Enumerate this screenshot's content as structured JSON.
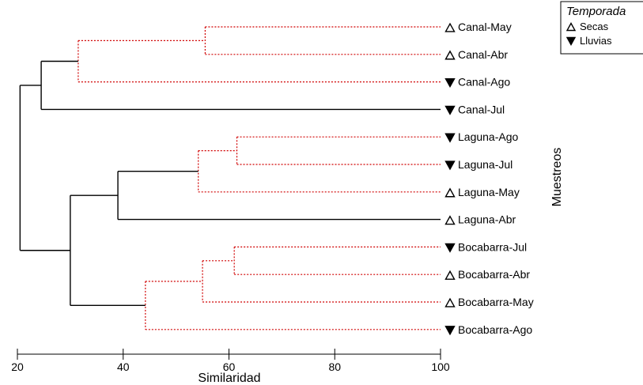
{
  "chart_data": {
    "type": "dendrogram",
    "xlabel": "Similaridad",
    "ylabel": "Muestreos",
    "xlim": [
      20,
      100
    ],
    "xticks": [
      20,
      40,
      60,
      80,
      100
    ],
    "colors": {
      "significant": "#d00000",
      "non_significant": "#000000"
    },
    "legend": {
      "title": "Temporada",
      "placement": "top-right",
      "items": [
        {
          "label": "Secas",
          "symbol": "triangle-up-open"
        },
        {
          "label": "Lluvias",
          "symbol": "triangle-down-filled"
        }
      ]
    },
    "leaves": [
      {
        "label": "Canal-May",
        "season": "Secas"
      },
      {
        "label": "Canal-Abr",
        "season": "Secas"
      },
      {
        "label": "Canal-Ago",
        "season": "Lluvias"
      },
      {
        "label": "Canal-Jul",
        "season": "Lluvias"
      },
      {
        "label": "Laguna-Ago",
        "season": "Lluvias"
      },
      {
        "label": "Laguna-Jul",
        "season": "Lluvias"
      },
      {
        "label": "Laguna-May",
        "season": "Secas"
      },
      {
        "label": "Laguna-Abr",
        "season": "Secas"
      },
      {
        "label": "Bocabarra-Jul",
        "season": "Lluvias"
      },
      {
        "label": "Bocabarra-Abr",
        "season": "Secas"
      },
      {
        "label": "Bocabarra-May",
        "season": "Secas"
      },
      {
        "label": "Bocabarra-Ago",
        "season": "Lluvias"
      }
    ],
    "merges": [
      {
        "id": "m1",
        "children": [
          "Canal-May",
          "Canal-Abr"
        ],
        "similarity": 55.5,
        "significant": false
      },
      {
        "id": "m2",
        "children": [
          "m1",
          "Canal-Ago"
        ],
        "similarity": 31.5,
        "significant": false
      },
      {
        "id": "m3",
        "children": [
          "m2",
          "Canal-Jul"
        ],
        "similarity": 24.5,
        "significant": true
      },
      {
        "id": "m4",
        "children": [
          "Laguna-Ago",
          "Laguna-Jul"
        ],
        "similarity": 61.5,
        "significant": false
      },
      {
        "id": "m5",
        "children": [
          "m4",
          "Laguna-May"
        ],
        "similarity": 54.2,
        "significant": false
      },
      {
        "id": "m6",
        "children": [
          "m5",
          "Laguna-Abr"
        ],
        "similarity": 39.0,
        "significant": true
      },
      {
        "id": "m7",
        "children": [
          "Bocabarra-Jul",
          "Bocabarra-Abr"
        ],
        "similarity": 61.0,
        "significant": false
      },
      {
        "id": "m8",
        "children": [
          "m7",
          "Bocabarra-May"
        ],
        "similarity": 55.0,
        "significant": false
      },
      {
        "id": "m9",
        "children": [
          "m8",
          "Bocabarra-Ago"
        ],
        "similarity": 44.2,
        "significant": false
      },
      {
        "id": "m10",
        "children": [
          "m6",
          "m9"
        ],
        "similarity": 30.0,
        "significant": true
      },
      {
        "id": "m11",
        "children": [
          "m3",
          "m10"
        ],
        "similarity": 20.5,
        "significant": true
      }
    ]
  }
}
